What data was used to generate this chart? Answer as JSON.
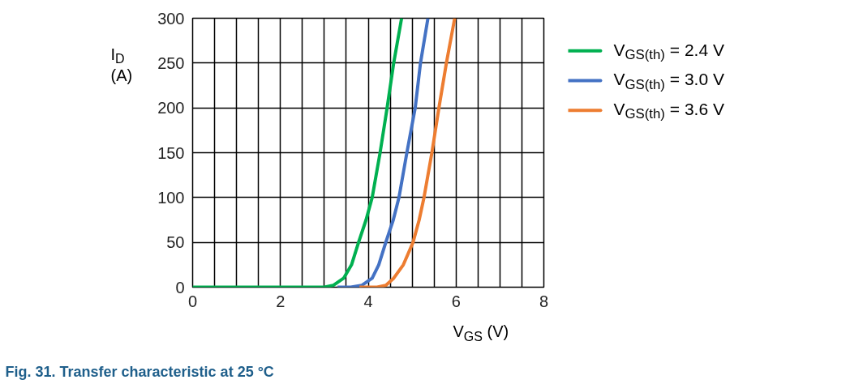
{
  "chart_data": {
    "type": "line",
    "title": "Fig. 31.  Transfer characteristic at 25 °C",
    "xlabel": "V$_{GS}$ (V)",
    "ylabel": "I$_{D}$ (A)",
    "xlim": [
      0,
      8
    ],
    "ylim": [
      0,
      300
    ],
    "xticks": [
      0,
      {
        "value": 0.5,
        "label": null
      },
      {
        "value": 1,
        "label": null
      },
      {
        "value": 1.5,
        "label": null
      },
      2,
      {
        "value": 2.5,
        "label": null
      },
      {
        "value": 3,
        "label": null
      },
      {
        "value": 3.5,
        "label": null
      },
      4,
      {
        "value": 4.5,
        "label": null
      },
      {
        "value": 5,
        "label": null
      },
      {
        "value": 5.5,
        "label": null
      },
      6,
      {
        "value": 6.5,
        "label": null
      },
      {
        "value": 7,
        "label": null
      },
      {
        "value": 7.5,
        "label": null
      },
      8
    ],
    "yticks": [
      0,
      50,
      100,
      150,
      200,
      250,
      300
    ],
    "grid": true,
    "legend": "right",
    "line_style": "solid",
    "series": [
      {
        "name": "V$_{GS(th)}$ = 2.4 V",
        "color": "#00b050",
        "x": [
          0,
          3.0,
          3.2,
          3.44,
          3.62,
          3.78,
          3.95,
          4.09,
          4.27,
          4.43,
          4.58,
          4.76
        ],
        "values": [
          0,
          0,
          2,
          10,
          25,
          50,
          75,
          100,
          150,
          200,
          250,
          300
        ]
      },
      {
        "name": "V$_{GS(th)}$ = 3.0 V",
        "color": "#4472c4",
        "x": [
          3.3,
          3.6,
          3.85,
          4.09,
          4.24,
          4.4,
          4.57,
          4.7,
          4.88,
          5.07,
          5.19,
          5.36
        ],
        "values": [
          0,
          0,
          2,
          10,
          25,
          50,
          75,
          100,
          150,
          200,
          250,
          300
        ]
      },
      {
        "name": "V$_{GS(th)}$ = 3.6 V",
        "color": "#ed7d31",
        "x": [
          3.8,
          4.2,
          4.4,
          4.58,
          4.8,
          5.02,
          5.16,
          5.27,
          5.45,
          5.61,
          5.78,
          5.97
        ],
        "values": [
          0,
          0,
          2,
          10,
          25,
          50,
          75,
          100,
          150,
          200,
          250,
          300
        ]
      }
    ]
  }
}
